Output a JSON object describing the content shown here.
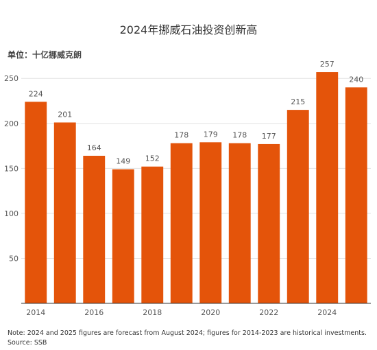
{
  "chart_data": {
    "type": "bar",
    "title": "2024年挪威石油投资创新高",
    "ylabel": "单位：十亿挪威克朗",
    "xlabel": "",
    "categories": [
      "2014",
      "2015",
      "2016",
      "2017",
      "2018",
      "2019",
      "2020",
      "2021",
      "2022",
      "2023",
      "2024",
      "2025"
    ],
    "values": [
      224,
      201,
      164,
      149,
      152,
      178,
      179,
      178,
      177,
      215,
      257,
      240
    ],
    "x_tick_labels": [
      "2014",
      "2016",
      "2018",
      "2020",
      "2022",
      "2024"
    ],
    "y_ticks": [
      50,
      100,
      150,
      200,
      250
    ],
    "ylim": [
      0,
      270
    ],
    "grid": true,
    "bar_color": "#e4540a"
  },
  "notes": {
    "line1": "Note: 2024 and 2025 figures are forecast from August 2024; figures for 2014-2023 are historical investments.",
    "line2": "Source: SSB"
  }
}
